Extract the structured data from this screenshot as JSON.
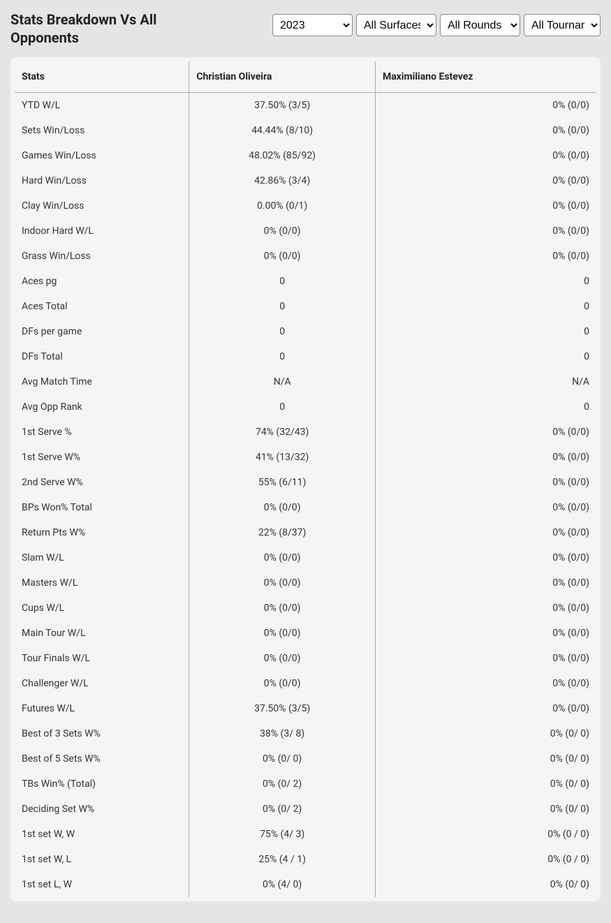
{
  "header": {
    "title": "Stats Breakdown Vs All Opponents",
    "filters": {
      "year": "2023",
      "surface": "All Surfaces",
      "round": "All Rounds",
      "tournament": "All Tournaments"
    }
  },
  "table": {
    "columns": [
      "Stats",
      "Christian Oliveira",
      "Maximiliano Estevez"
    ],
    "rows": [
      [
        "YTD W/L",
        "37.50% (3/5)",
        "0% (0/0)"
      ],
      [
        "Sets Win/Loss",
        "44.44% (8/10)",
        "0% (0/0)"
      ],
      [
        "Games Win/Loss",
        "48.02% (85/92)",
        "0% (0/0)"
      ],
      [
        "Hard Win/Loss",
        "42.86% (3/4)",
        "0% (0/0)"
      ],
      [
        "Clay Win/Loss",
        "0.00% (0/1)",
        "0% (0/0)"
      ],
      [
        "Indoor Hard W/L",
        "0% (0/0)",
        "0% (0/0)"
      ],
      [
        "Grass Win/Loss",
        "0% (0/0)",
        "0% (0/0)"
      ],
      [
        "Aces pg",
        "0",
        "0"
      ],
      [
        "Aces Total",
        "0",
        "0"
      ],
      [
        "DFs per game",
        "0",
        "0"
      ],
      [
        "DFs Total",
        "0",
        "0"
      ],
      [
        "Avg Match Time",
        "N/A",
        "N/A"
      ],
      [
        "Avg Opp Rank",
        "0",
        "0"
      ],
      [
        "1st Serve %",
        "74% (32/43)",
        "0% (0/0)"
      ],
      [
        "1st Serve W%",
        "41% (13/32)",
        "0% (0/0)"
      ],
      [
        "2nd Serve W%",
        "55% (6/11)",
        "0% (0/0)"
      ],
      [
        "BPs Won% Total",
        "0% (0/0)",
        "0% (0/0)"
      ],
      [
        "Return Pts W%",
        "22% (8/37)",
        "0% (0/0)"
      ],
      [
        "Slam W/L",
        "0% (0/0)",
        "0% (0/0)"
      ],
      [
        "Masters W/L",
        "0% (0/0)",
        "0% (0/0)"
      ],
      [
        "Cups W/L",
        "0% (0/0)",
        "0% (0/0)"
      ],
      [
        "Main Tour W/L",
        "0% (0/0)",
        "0% (0/0)"
      ],
      [
        "Tour Finals W/L",
        "0% (0/0)",
        "0% (0/0)"
      ],
      [
        "Challenger W/L",
        "0% (0/0)",
        "0% (0/0)"
      ],
      [
        "Futures W/L",
        "37.50% (3/5)",
        "0% (0/0)"
      ],
      [
        "Best of 3 Sets W%",
        "38% (3/ 8)",
        "0% (0/ 0)"
      ],
      [
        "Best of 5 Sets W%",
        "0% (0/ 0)",
        "0% (0/ 0)"
      ],
      [
        "TBs Win% (Total)",
        "0% (0/ 2)",
        "0% (0/ 0)"
      ],
      [
        "Deciding Set W%",
        "0% (0/ 2)",
        "0% (0/ 0)"
      ],
      [
        "1st set W, W",
        "75% (4/ 3)",
        "0% (0 / 0)"
      ],
      [
        "1st set W, L",
        "25% (4 / 1)",
        "0% (0 / 0)"
      ],
      [
        "1st set L, W",
        "0% (4/ 0)",
        "0% (0/ 0)"
      ]
    ]
  }
}
